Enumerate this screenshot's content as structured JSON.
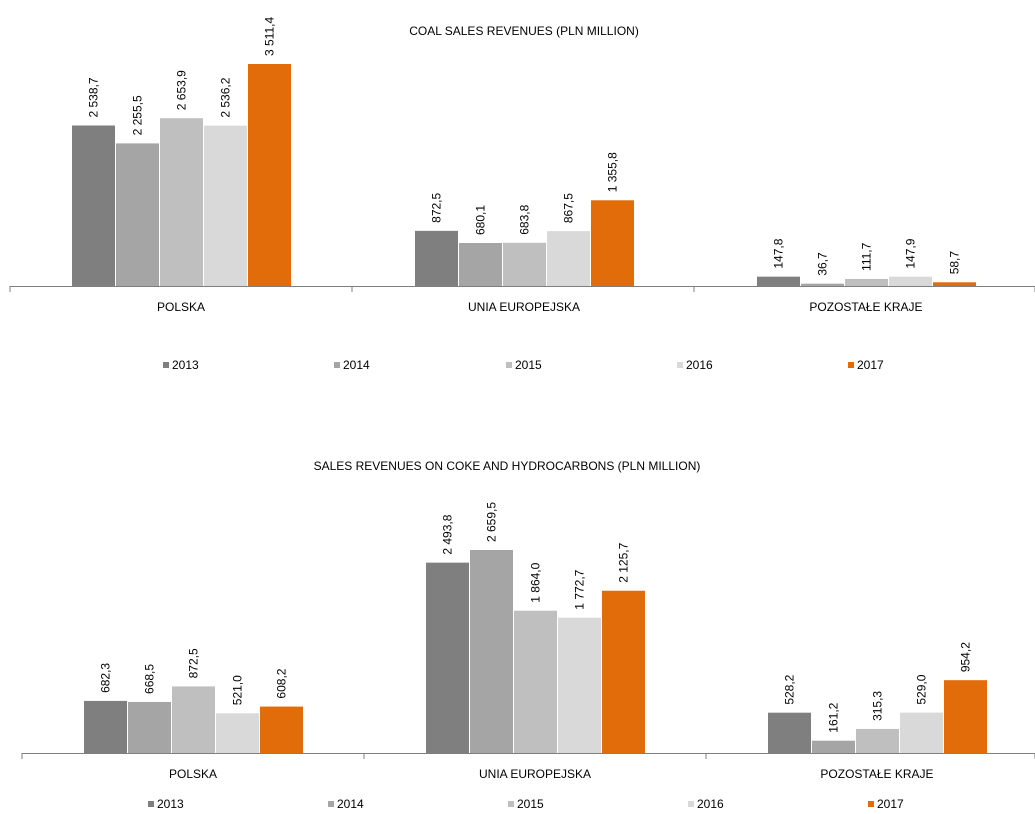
{
  "colors": {
    "2013": "#7f7f7f",
    "2014": "#a5a5a5",
    "2015": "#bfbfbf",
    "2016": "#d9d9d9",
    "2017": "#e36c0a",
    "axis": "#7f7f7f"
  },
  "chart_data": [
    {
      "type": "bar",
      "title": "COAL SALES REVENUES (PLN MILLION)",
      "categories": [
        "POLSKA",
        "UNIA EUROPEJSKA",
        "POZOSTAŁE KRAJE"
      ],
      "series": [
        {
          "name": "2013",
          "values": [
            2538.7,
            872.5,
            147.8
          ],
          "labels": [
            "2 538,7",
            "872,5",
            "147,8"
          ]
        },
        {
          "name": "2014",
          "values": [
            2255.5,
            680.1,
            36.7
          ],
          "labels": [
            "2 255,5",
            "680,1",
            "36,7"
          ]
        },
        {
          "name": "2015",
          "values": [
            2653.9,
            683.8,
            111.7
          ],
          "labels": [
            "2 653,9",
            "683,8",
            "111,7"
          ]
        },
        {
          "name": "2016",
          "values": [
            2536.2,
            867.5,
            147.9
          ],
          "labels": [
            "2 536,2",
            "867,5",
            "147,9"
          ]
        },
        {
          "name": "2017",
          "values": [
            3511.4,
            1355.8,
            58.7
          ],
          "labels": [
            "3 511,4",
            "1 355,8",
            "58,7"
          ]
        }
      ],
      "legend_position": "bottom",
      "grid": false
    },
    {
      "type": "bar",
      "title": "SALES REVENUES ON COKE AND HYDROCARBONS (PLN MILLION)",
      "categories": [
        "POLSKA",
        "UNIA EUROPEJSKA",
        "POZOSTAŁE KRAJE"
      ],
      "series": [
        {
          "name": "2013",
          "values": [
            682.3,
            2493.8,
            528.2
          ],
          "labels": [
            "682,3",
            "2 493,8",
            "528,2"
          ]
        },
        {
          "name": "2014",
          "values": [
            668.5,
            2659.5,
            161.2
          ],
          "labels": [
            "668,5",
            "2 659,5",
            "161,2"
          ]
        },
        {
          "name": "2015",
          "values": [
            872.5,
            1864.0,
            315.3
          ],
          "labels": [
            "872,5",
            "1 864,0",
            "315,3"
          ]
        },
        {
          "name": "2016",
          "values": [
            521.0,
            1772.7,
            529.0
          ],
          "labels": [
            "521,0",
            "1 772,7",
            "529,0"
          ]
        },
        {
          "name": "2017",
          "values": [
            608.2,
            2125.7,
            954.2
          ],
          "labels": [
            "608,2",
            "2 125,7",
            "954,2"
          ]
        }
      ],
      "legend_position": "bottom",
      "grid": false
    }
  ]
}
